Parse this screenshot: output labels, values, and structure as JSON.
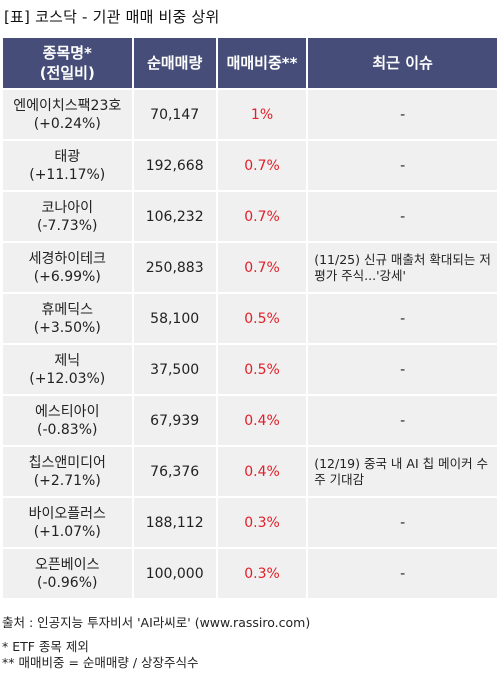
{
  "title": "[표] 코스닥 - 기관 매매 비중 상위",
  "headers": {
    "col1_line1": "종목명*",
    "col1_line2": "(전일비)",
    "col2": "순매매량",
    "col3": "매매비중**",
    "col4": "최근 이슈"
  },
  "rows": [
    {
      "name": "엔에이치스팩23호",
      "change": "(+0.24%)",
      "volume": "70,147",
      "ratio": "1%",
      "issue": "-"
    },
    {
      "name": "태광",
      "change": "(+11.17%)",
      "volume": "192,668",
      "ratio": "0.7%",
      "issue": "-"
    },
    {
      "name": "코나아이",
      "change": "(-7.73%)",
      "volume": "106,232",
      "ratio": "0.7%",
      "issue": "-"
    },
    {
      "name": "세경하이테크",
      "change": "(+6.99%)",
      "volume": "250,883",
      "ratio": "0.7%",
      "issue": "(11/25) 신규 매출처 확대되는 저평가 주식...'강세'"
    },
    {
      "name": "휴메딕스",
      "change": "(+3.50%)",
      "volume": "58,100",
      "ratio": "0.5%",
      "issue": "-"
    },
    {
      "name": "제닉",
      "change": "(+12.03%)",
      "volume": "37,500",
      "ratio": "0.5%",
      "issue": "-"
    },
    {
      "name": "에스티아이",
      "change": "(-0.83%)",
      "volume": "67,939",
      "ratio": "0.4%",
      "issue": "-"
    },
    {
      "name": "칩스앤미디어",
      "change": "(+2.71%)",
      "volume": "76,376",
      "ratio": "0.4%",
      "issue": "(12/19) 중국 내 AI 칩 메이커 수주 기대감"
    },
    {
      "name": "바이오플러스",
      "change": "(+1.07%)",
      "volume": "188,112",
      "ratio": "0.3%",
      "issue": "-"
    },
    {
      "name": "오픈베이스",
      "change": "(-0.96%)",
      "volume": "100,000",
      "ratio": "0.3%",
      "issue": "-"
    }
  ],
  "footer": {
    "source": "출처 : 인공지능 투자비서 'AI라씨로' (www.rassiro.com)",
    "note1": "* ETF 종목 제외",
    "note2": "** 매매비중 = 순매매량 / 상장주식수"
  },
  "colors": {
    "header_bg": "#454d78",
    "cell_bg": "#f0f0f0",
    "ratio_text": "#e0202a"
  }
}
